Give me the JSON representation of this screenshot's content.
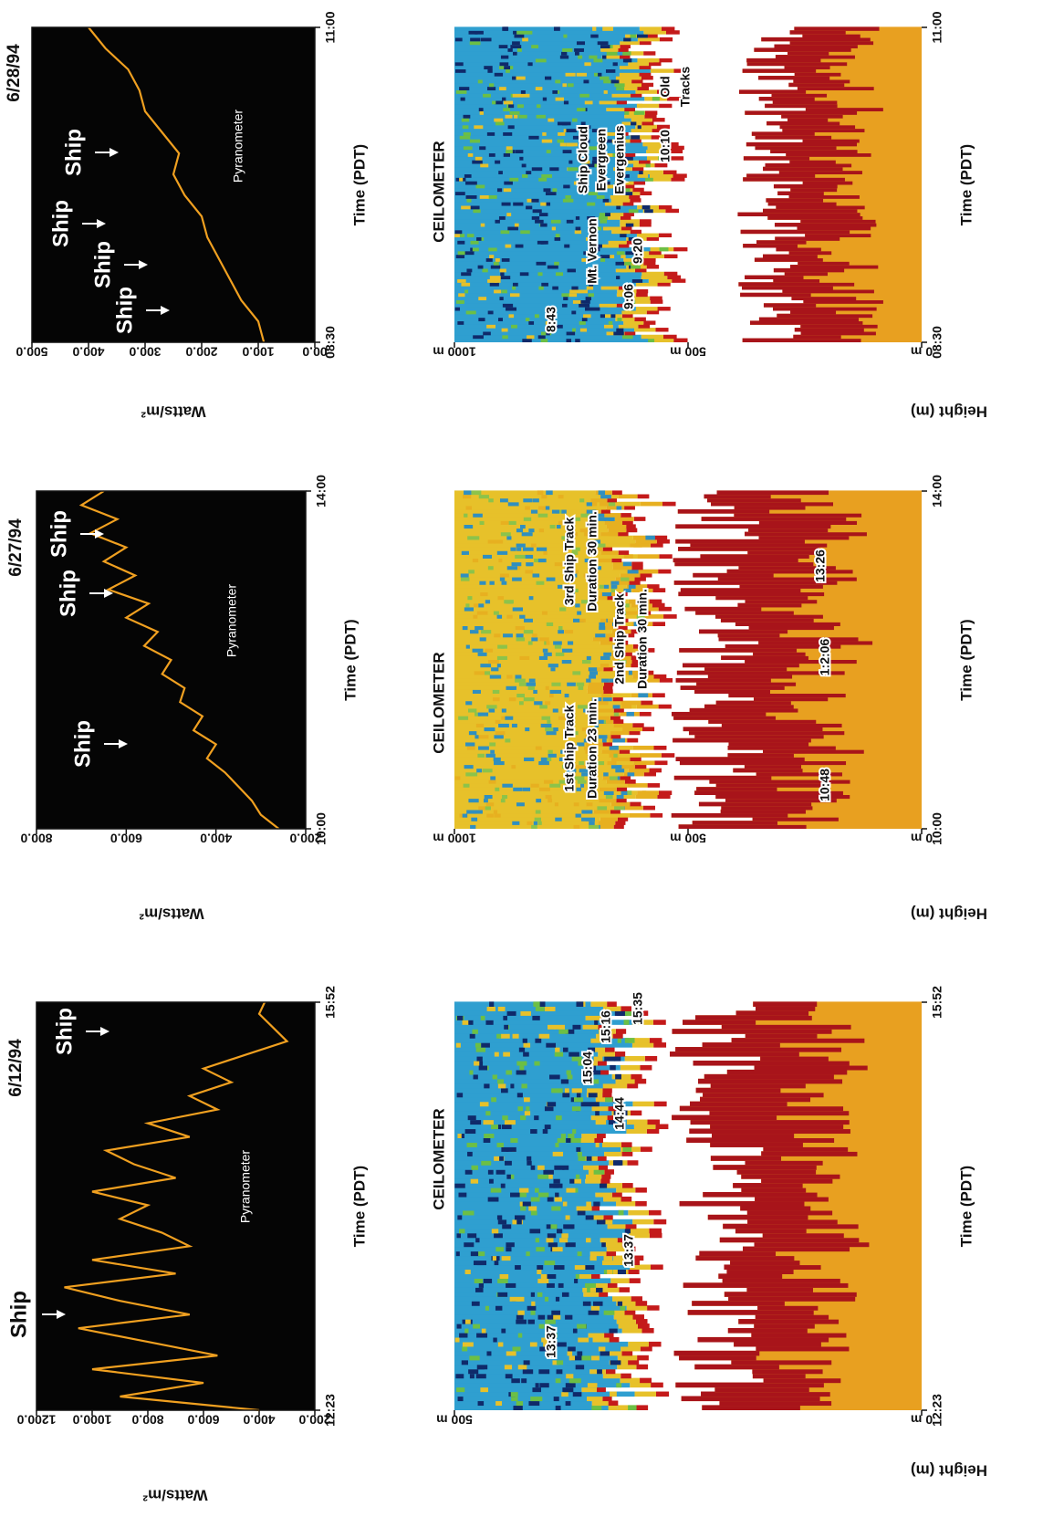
{
  "chart_data": [
    {
      "type": "line",
      "title": "6/12/94",
      "xlabel": "Time (PDT)",
      "ylabel": "Watts/m²",
      "x": [
        "12:23",
        "12:30",
        "12:37",
        "12:44",
        "12:51",
        "12:58",
        "13:05",
        "13:12",
        "13:19",
        "13:26",
        "13:33",
        "13:40",
        "13:47",
        "13:54",
        "14:01",
        "14:08",
        "14:15",
        "14:22",
        "14:29",
        "14:36",
        "14:43",
        "14:50",
        "14:57",
        "15:04",
        "15:11",
        "15:18",
        "15:25",
        "15:32",
        "15:39",
        "15:46",
        "15:52"
      ],
      "series": [
        {
          "name": "Pyranometer",
          "color": "#f0a020",
          "values": [
            400,
            900,
            600,
            1000,
            550,
            800,
            1050,
            650,
            900,
            1100,
            700,
            1000,
            650,
            750,
            900,
            800,
            1000,
            700,
            850,
            950,
            650,
            800,
            550,
            650,
            500,
            600,
            450,
            300,
            350,
            400,
            380
          ]
        }
      ],
      "xlim": [
        "12:23",
        "15:52"
      ],
      "xticks": [
        "12:23",
        "15:52"
      ],
      "ylim": [
        200,
        1200
      ],
      "yticks": [
        {
          "value": 1200,
          "label": "1200.0"
        },
        {
          "value": 1000,
          "label": "1000.0"
        },
        {
          "value": 800,
          "label": "800.0"
        },
        {
          "value": 600,
          "label": "600.0"
        },
        {
          "value": 400,
          "label": "400.0"
        },
        {
          "value": 200,
          "label": "200.0"
        }
      ],
      "annotations": [
        "Ship",
        "Ship"
      ]
    },
    {
      "type": "line",
      "title": "6/27/94",
      "xlabel": "Time (PDT)",
      "ylabel": "Watts/m²",
      "x": [
        "10:00",
        "10:10",
        "10:20",
        "10:30",
        "10:40",
        "10:50",
        "11:00",
        "11:10",
        "11:20",
        "11:30",
        "11:40",
        "11:50",
        "12:00",
        "12:10",
        "12:20",
        "12:30",
        "12:40",
        "12:50",
        "13:00",
        "13:10",
        "13:20",
        "13:30",
        "13:40",
        "13:50",
        "14:00"
      ],
      "series": [
        {
          "name": "Pyranometer",
          "color": "#f0a020",
          "values": [
            260,
            300,
            320,
            350,
            380,
            420,
            400,
            450,
            430,
            480,
            470,
            520,
            500,
            560,
            530,
            600,
            550,
            640,
            580,
            650,
            600,
            680,
            620,
            700,
            650
          ]
        }
      ],
      "xlim": [
        "10:00",
        "14:00"
      ],
      "xticks": [
        "10:00",
        "14:00"
      ],
      "ylim": [
        200,
        800
      ],
      "yticks": [
        {
          "value": 800,
          "label": "800.0"
        },
        {
          "value": 600,
          "label": "600.0"
        },
        {
          "value": 400,
          "label": "400.0"
        },
        {
          "value": 200,
          "label": "200.0"
        }
      ],
      "annotations": [
        "Ship",
        "Ship",
        "Ship"
      ]
    },
    {
      "type": "line",
      "title": "6/28/94",
      "xlabel": "Time (PDT)",
      "ylabel": "Watts/m²",
      "x": [
        "08:30",
        "08:40",
        "08:50",
        "09:00",
        "09:10",
        "09:20",
        "09:30",
        "09:40",
        "09:50",
        "10:00",
        "10:10",
        "10:20",
        "10:30",
        "10:40",
        "10:50",
        "11:00"
      ],
      "series": [
        {
          "name": "Pyranometer",
          "color": "#f0a020",
          "values": [
            90,
            100,
            130,
            150,
            170,
            190,
            200,
            230,
            250,
            240,
            270,
            300,
            310,
            330,
            370,
            400
          ]
        }
      ],
      "xlim": [
        "08:30",
        "11:00"
      ],
      "xticks": [
        "08:30",
        "11:00"
      ],
      "ylim": [
        0,
        500
      ],
      "yticks": [
        {
          "value": 500,
          "label": "500.0"
        },
        {
          "value": 400,
          "label": "400.0"
        },
        {
          "value": 300,
          "label": "300.0"
        },
        {
          "value": 200,
          "label": "200.0"
        },
        {
          "value": 100,
          "label": "100.0"
        },
        {
          "value": 0,
          "label": "00.0"
        }
      ],
      "annotations": [
        "Ship",
        "Ship",
        "Ship",
        "Ship"
      ]
    },
    {
      "type": "heatmap",
      "title": "CEILOMETER",
      "xlabel": "Time (PDT)",
      "ylabel": "Height (m)",
      "xlim": [
        "12:23",
        "15:52"
      ],
      "xticks": [
        "12:23",
        "15:52"
      ],
      "ylim": [
        0,
        500
      ],
      "yticks": [
        {
          "value": 500,
          "label": "500 m"
        },
        {
          "value": 0,
          "label": "0 m"
        }
      ],
      "annotations": [
        "13:37",
        "13:37",
        "14:44",
        "15:04",
        "15:16",
        "15:35"
      ]
    },
    {
      "type": "heatmap",
      "title": "CEILOMETER",
      "xlabel": "Time (PDT)",
      "ylabel": "Height (m)",
      "xlim": [
        "10:00",
        "14:00"
      ],
      "xticks": [
        "10:00",
        "14:00"
      ],
      "ylim": [
        0,
        1000
      ],
      "yticks": [
        {
          "value": 1000,
          "label": "1000 m"
        },
        {
          "value": 500,
          "label": "500 m"
        },
        {
          "value": 0,
          "label": "0 m"
        }
      ],
      "annotations": [
        "1st Ship Track",
        "Duration 23 min.",
        "2nd Ship Track",
        "Duration 30 min.",
        "3rd Ship Track",
        "Duration 30 min.",
        "10:48",
        "1:2:06",
        "13:26"
      ]
    },
    {
      "type": "heatmap",
      "title": "CEILOMETER",
      "xlabel": "Time (PDT)",
      "ylabel": "Height (m)",
      "xlim": [
        "08:30",
        "11:00"
      ],
      "xticks": [
        "08:30",
        "11:00"
      ],
      "ylim": [
        0,
        1000
      ],
      "yticks": [
        {
          "value": 1000,
          "label": "1000 m"
        },
        {
          "value": 500,
          "label": "500 m"
        },
        {
          "value": 0,
          "label": "0 m"
        }
      ],
      "annotations": [
        "8:43",
        "9:06",
        "9:20",
        "Mt. Vernon",
        "Ship Cloud",
        "Evergreen",
        "Evergenius",
        "10:10",
        "Old",
        "Tracks"
      ]
    }
  ]
}
